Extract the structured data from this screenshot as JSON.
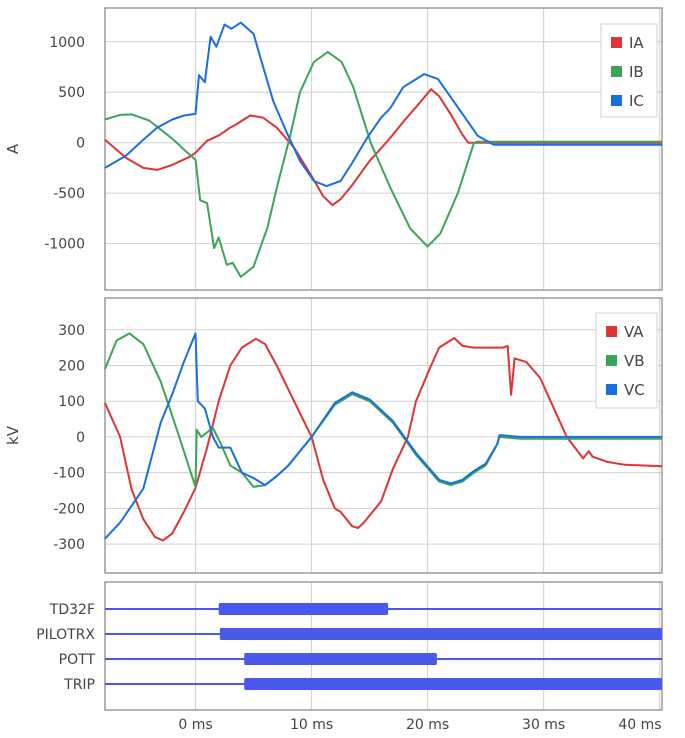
{
  "chart_data": [
    {
      "type": "line",
      "ylabel": "A",
      "xlim": [
        -7.8,
        40.2
      ],
      "ylim": [
        -1460,
        1335
      ],
      "yticks": [
        -1000,
        -500,
        0,
        500,
        1000
      ],
      "grid": true,
      "legend": "top-right",
      "series": [
        {
          "name": "IA",
          "color": "#e03333",
          "x": [
            -7.8,
            -6,
            -4.5,
            -3.3,
            -2,
            -0.5,
            0,
            1,
            2,
            3,
            3.5,
            4.7,
            5.8,
            7,
            8.5,
            10,
            11,
            11.8,
            12.5,
            13.5,
            15,
            16.5,
            18,
            19.5,
            20.3,
            21,
            22,
            23,
            23.5,
            40.2
          ],
          "y": [
            30,
            -150,
            -250,
            -270,
            -220,
            -140,
            -100,
            20,
            70,
            150,
            180,
            270,
            250,
            150,
            -50,
            -330,
            -530,
            -620,
            -560,
            -420,
            -180,
            10,
            220,
            420,
            530,
            460,
            280,
            80,
            0,
            0
          ]
        },
        {
          "name": "IB",
          "color": "#3aa655",
          "x": [
            -7.8,
            -6.5,
            -5.5,
            -4,
            -2,
            -0.5,
            0,
            0.4,
            1,
            1.6,
            2,
            2.7,
            3.2,
            3.9,
            5,
            6.2,
            7,
            8.2,
            9,
            10.2,
            11.4,
            12.6,
            13.6,
            15.1,
            16.8,
            18.5,
            20,
            21.1,
            22.6,
            24,
            24.3,
            40.2
          ],
          "y": [
            230,
            275,
            280,
            220,
            40,
            -120,
            -170,
            -570,
            -600,
            -1045,
            -940,
            -1210,
            -1190,
            -1330,
            -1230,
            -840,
            -450,
            90,
            500,
            800,
            900,
            800,
            550,
            0,
            -450,
            -850,
            -1030,
            -900,
            -500,
            0,
            10,
            10
          ]
        },
        {
          "name": "IC",
          "color": "#1a6fe0",
          "x": [
            -7.8,
            -6,
            -4.5,
            -3.3,
            -2,
            -1,
            0,
            0.3,
            0.8,
            1.3,
            1.8,
            2.5,
            3.1,
            3.9,
            5,
            5.6,
            6.7,
            7.9,
            9,
            10.2,
            11.3,
            12.5,
            13.5,
            14.8,
            16,
            16.8,
            17.9,
            19.7,
            20.9,
            22,
            23.4,
            24.3,
            25.7,
            40.2
          ],
          "y": [
            -250,
            -130,
            30,
            150,
            230,
            270,
            285,
            670,
            600,
            1050,
            950,
            1170,
            1130,
            1190,
            1080,
            840,
            410,
            90,
            -180,
            -380,
            -430,
            -380,
            -200,
            50,
            250,
            345,
            550,
            680,
            630,
            450,
            220,
            70,
            -20,
            -20
          ]
        }
      ]
    },
    {
      "type": "line",
      "ylabel": "kV",
      "xlim": [
        -7.8,
        40.2
      ],
      "ylim": [
        -381,
        389
      ],
      "yticks": [
        -300,
        -200,
        -100,
        0,
        100,
        200,
        300
      ],
      "grid": true,
      "legend": "top-right",
      "series": [
        {
          "name": "VA",
          "color": "#e03333",
          "x": [
            -7.8,
            -6.5,
            -5.5,
            -4.5,
            -3.5,
            -2.8,
            -2,
            -1,
            0,
            1,
            2,
            3,
            4,
            5.2,
            6,
            7,
            8.5,
            10,
            11,
            12,
            12.5,
            13.5,
            14,
            14.5,
            16,
            17,
            18.3,
            19,
            20.3,
            21,
            22.3,
            23,
            24,
            26.5,
            26.9,
            27.2,
            27.5,
            28.5,
            29.7,
            30.6,
            32,
            33.4,
            33.9,
            34.2,
            35.5,
            37,
            40.2
          ],
          "y": [
            95,
            0,
            -148,
            -230,
            -280,
            -290,
            -270,
            -210,
            -143,
            -30,
            100,
            200,
            250,
            275,
            260,
            200,
            100,
            0,
            -120,
            -200,
            -210,
            -250,
            -255,
            -240,
            -180,
            -90,
            0,
            100,
            200,
            250,
            277,
            255,
            250,
            250,
            255,
            118,
            220,
            210,
            165,
            100,
            0,
            -60,
            -40,
            -55,
            -70,
            -78,
            -82
          ]
        },
        {
          "name": "VB",
          "color": "#3aa655",
          "x": [
            -7.8,
            -6.8,
            -5.7,
            -4.5,
            -3,
            -1.5,
            0,
            0.1,
            0.5,
            1.5,
            2.2,
            3,
            4,
            5,
            6,
            7,
            8,
            10,
            12,
            13.5,
            15,
            17,
            19,
            21,
            22,
            23,
            24,
            25,
            26,
            26.2,
            28,
            40.2
          ],
          "y": [
            190,
            270,
            290,
            260,
            155,
            10,
            -140,
            20,
            0,
            25,
            -20,
            -80,
            -100,
            -140,
            -135,
            -110,
            -80,
            0,
            90,
            120,
            100,
            40,
            -50,
            -125,
            -135,
            -125,
            -100,
            -80,
            -20,
            0,
            -5,
            -5
          ]
        },
        {
          "name": "VC",
          "color": "#1a6fe0",
          "x": [
            -7.8,
            -6.5,
            -4.5,
            -3,
            -2,
            -1,
            0,
            0.2,
            0.8,
            1.5,
            2,
            3,
            4,
            5,
            6,
            7,
            8,
            10,
            12,
            13.5,
            15,
            17,
            19,
            21,
            22,
            23,
            24,
            25,
            26,
            26.2,
            28,
            40.2
          ],
          "y": [
            -285,
            -240,
            -145,
            40,
            120,
            210,
            290,
            100,
            80,
            0,
            -30,
            -30,
            -100,
            -115,
            -135,
            -110,
            -80,
            0,
            95,
            125,
            105,
            45,
            -45,
            -120,
            -130,
            -120,
            -95,
            -75,
            -20,
            5,
            0,
            0
          ]
        }
      ]
    },
    {
      "type": "digital",
      "xlim": [
        -7.8,
        40.2
      ],
      "xticks": [
        0,
        10,
        20,
        30,
        40
      ],
      "xtick_labels": [
        "0 ms",
        "10 ms",
        "20 ms",
        "30 ms",
        "40 ms"
      ],
      "color": "#4a58ee",
      "channels": [
        {
          "name": "TD32F",
          "on": [
            2.0,
            16.6
          ]
        },
        {
          "name": "PILOTRX",
          "on": [
            2.1,
            40.2
          ]
        },
        {
          "name": "POTT",
          "on": [
            4.2,
            20.8
          ]
        },
        {
          "name": "TRIP",
          "on": [
            4.2,
            40.2
          ]
        }
      ]
    }
  ]
}
